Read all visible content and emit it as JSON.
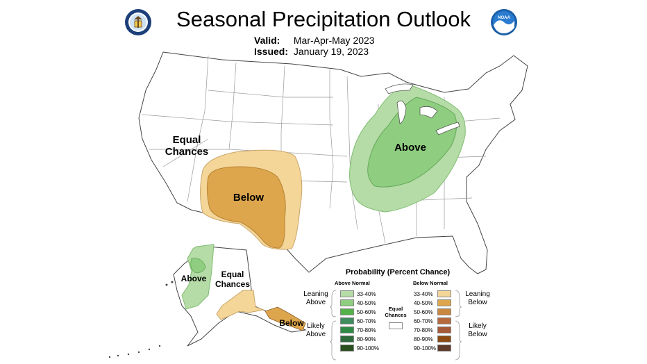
{
  "header": {
    "title": "Seasonal Precipitation Outlook",
    "valid_label": "Valid:",
    "valid_value": "Mar-Apr-May 2023",
    "issued_label": "Issued:",
    "issued_value": "January 19, 2023",
    "left_logo": "department-of-commerce-seal",
    "right_logo": "noaa-logo",
    "right_logo_text": "NOAA"
  },
  "map_labels": {
    "conus_equal": "Equal\nChances",
    "conus_below": "Below",
    "conus_above": "Above",
    "alaska_above": "Above",
    "alaska_equal": "Equal\nChances",
    "alaska_below": "Below"
  },
  "legend": {
    "title": "Probability (Percent Chance)",
    "above_header": "Above Normal",
    "below_header": "Below Normal",
    "equal_label": "Equal\nChances",
    "leaning_above": "Leaning\nAbove",
    "likely_above": "Likely\nAbove",
    "leaning_below": "Leaning\nBelow",
    "likely_below": "Likely\nBelow",
    "above": [
      {
        "label": "33-40%",
        "color": "#b5dba6"
      },
      {
        "label": "40-50%",
        "color": "#8fce80"
      },
      {
        "label": "50-60%",
        "color": "#54b148"
      },
      {
        "label": "60-70%",
        "color": "#3f8c5e"
      },
      {
        "label": "70-80%",
        "color": "#2e8b45"
      },
      {
        "label": "80-90%",
        "color": "#2f6a3c"
      },
      {
        "label": "90-100%",
        "color": "#2a4f1f"
      }
    ],
    "below": [
      {
        "label": "33-40%",
        "color": "#f4d699"
      },
      {
        "label": "40-50%",
        "color": "#dda54c"
      },
      {
        "label": "50-60%",
        "color": "#c9873f"
      },
      {
        "label": "60-70%",
        "color": "#b56a3e"
      },
      {
        "label": "70-80%",
        "color": "#a65937"
      },
      {
        "label": "80-90%",
        "color": "#8a4a12"
      },
      {
        "label": "90-100%",
        "color": "#5e3a2a"
      }
    ],
    "equal_color": "#ffffff"
  },
  "colors": {
    "above_light": "#b5dba6",
    "above_mid": "#8fce80",
    "below_light": "#f4d699",
    "below_mid": "#dda54c"
  }
}
